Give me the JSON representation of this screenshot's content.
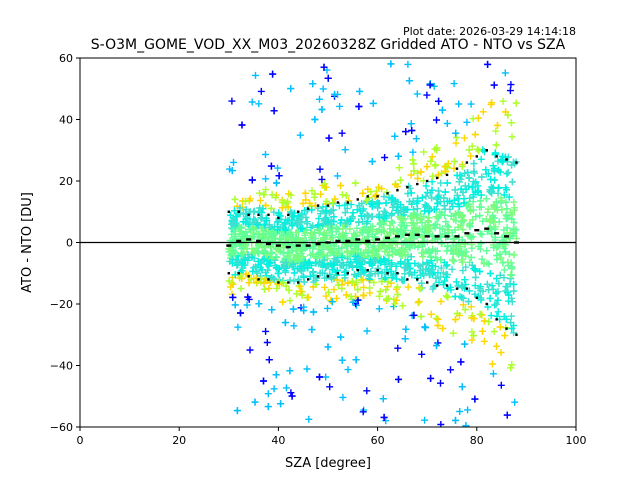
{
  "plot_date_label": "Plot date: 2026-03-29 14:14:18",
  "chart_data": {
    "type": "scatter",
    "title": "S-O3M_GOME_VOD_XX_M03_20260328Z Gridded ATO - NTO vs SZA",
    "xlabel": "SZA [degree]",
    "ylabel": "ATO - NTO [DU]",
    "xlim": [
      0,
      100
    ],
    "ylim": [
      -60,
      60
    ],
    "xticks": [
      0,
      20,
      40,
      60,
      80,
      100
    ],
    "yticks": [
      -60,
      -40,
      -20,
      0,
      20,
      40,
      60
    ],
    "grid": false,
    "marker": "+",
    "reference_line_y": 0,
    "colors": {
      "point_palette": [
        "#7cfc7c",
        "#00f0e0",
        "#60ff98",
        "#00bfff",
        "#adff2f",
        "#ffd700",
        "#0000ff",
        "#40e0d0"
      ],
      "stats_markers": "#000000",
      "reference_line": "#000000"
    },
    "data_extent": {
      "sza_range": [
        30,
        88
      ],
      "core_band": [
        -20,
        20
      ]
    },
    "binned_statistics": {
      "sza": [
        30,
        32,
        34,
        36,
        38,
        40,
        42,
        44,
        46,
        48,
        50,
        52,
        54,
        56,
        58,
        60,
        62,
        64,
        66,
        68,
        70,
        72,
        74,
        76,
        78,
        80,
        82,
        84,
        86,
        88
      ],
      "mean": [
        -1,
        0.5,
        1,
        0.5,
        -0.5,
        -1,
        -1.5,
        -1,
        -1,
        -0.5,
        0,
        0.5,
        0.5,
        1,
        0.5,
        1,
        1.5,
        2,
        2.5,
        2.5,
        2,
        2,
        2,
        2,
        3,
        4,
        4.5,
        3,
        2,
        0
      ],
      "upper": [
        10,
        10,
        9,
        9,
        9,
        8,
        9,
        10,
        11,
        12,
        12,
        13,
        13,
        14,
        15,
        15,
        16,
        17,
        18,
        19,
        20,
        21,
        22,
        24,
        26,
        28,
        30,
        28,
        27,
        26
      ],
      "lower": [
        -10,
        -10,
        -11,
        -12,
        -12,
        -13,
        -13,
        -13,
        -12,
        -11,
        -11,
        -10,
        -10,
        -9,
        -9,
        -9,
        -10,
        -10,
        -12,
        -12,
        -13,
        -14,
        -14,
        -15,
        -15,
        -18,
        -20,
        -25,
        -28,
        -30
      ]
    }
  }
}
